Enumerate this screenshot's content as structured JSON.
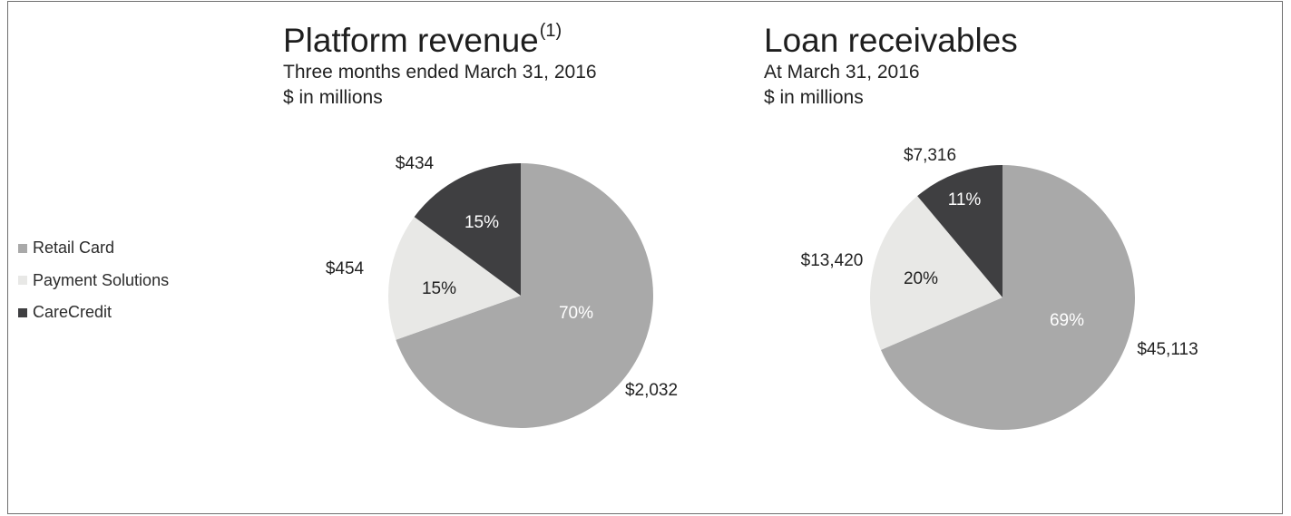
{
  "legend": [
    {
      "label": "Retail Card",
      "color": "#a9a9a9"
    },
    {
      "label": "Payment Solutions",
      "color": "#e8e8e6"
    },
    {
      "label": "CareCredit",
      "color": "#3f3f41"
    }
  ],
  "colors": {
    "pct_on_dark": "#ffffff",
    "pct_on_light": "#222222",
    "outline": "#6f6f6f"
  },
  "chart_data": [
    {
      "type": "pie",
      "title": "Platform revenue",
      "title_superscript": "(1)",
      "subtitle": "Three months ended March 31, 2016",
      "unit_label": "$ in millions",
      "slices": [
        {
          "name": "Retail Card",
          "value": 2032,
          "value_label": "$2,032",
          "pct_label": "70%"
        },
        {
          "name": "Payment Solutions",
          "value": 454,
          "value_label": "$454",
          "pct_label": "15%"
        },
        {
          "name": "CareCredit",
          "value": 434,
          "value_label": "$434",
          "pct_label": "15%"
        }
      ]
    },
    {
      "type": "pie",
      "title": "Loan receivables",
      "title_superscript": "",
      "subtitle": "At March 31, 2016",
      "unit_label": "$ in millions",
      "slices": [
        {
          "name": "Retail Card",
          "value": 45113,
          "value_label": "$45,113",
          "pct_label": "69%"
        },
        {
          "name": "Payment Solutions",
          "value": 13420,
          "value_label": "$13,420",
          "pct_label": "20%"
        },
        {
          "name": "CareCredit",
          "value": 7316,
          "value_label": "$7,316",
          "pct_label": "11%"
        }
      ]
    }
  ]
}
